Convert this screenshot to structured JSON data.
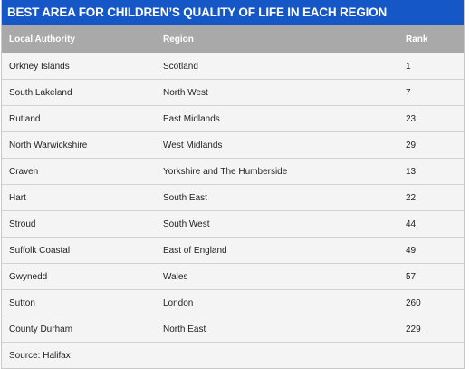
{
  "table": {
    "title": "BEST AREA FOR CHILDREN’S QUALITY OF LIFE  IN EACH REGION",
    "columns": [
      "Local Authority",
      "Region",
      "Rank"
    ],
    "rows": [
      {
        "authority": "Orkney Islands",
        "region": "Scotland",
        "rank": "1"
      },
      {
        "authority": "South Lakeland",
        "region": "North West",
        "rank": "7"
      },
      {
        "authority": "Rutland",
        "region": "East Midlands",
        "rank": "23"
      },
      {
        "authority": "North Warwickshire",
        "region": "West Midlands",
        "rank": "29"
      },
      {
        "authority": "Craven",
        "region": "Yorkshire and The Humberside",
        "rank": "13"
      },
      {
        "authority": "Hart",
        "region": "South East",
        "rank": "22"
      },
      {
        "authority": "Stroud",
        "region": "South West",
        "rank": "44"
      },
      {
        "authority": "Suffolk Coastal",
        "region": "East of England",
        "rank": "49"
      },
      {
        "authority": "Gwynedd",
        "region": "Wales",
        "rank": "57"
      },
      {
        "authority": "Sutton",
        "region": "London",
        "rank": "260"
      },
      {
        "authority": "County Durham",
        "region": "North East",
        "rank": "229"
      }
    ],
    "source": "Source: Halifax"
  },
  "colors": {
    "title_bg": "#1657c7",
    "header_bg": "#a9a9a9",
    "row_bg": "#f4f4f4"
  }
}
